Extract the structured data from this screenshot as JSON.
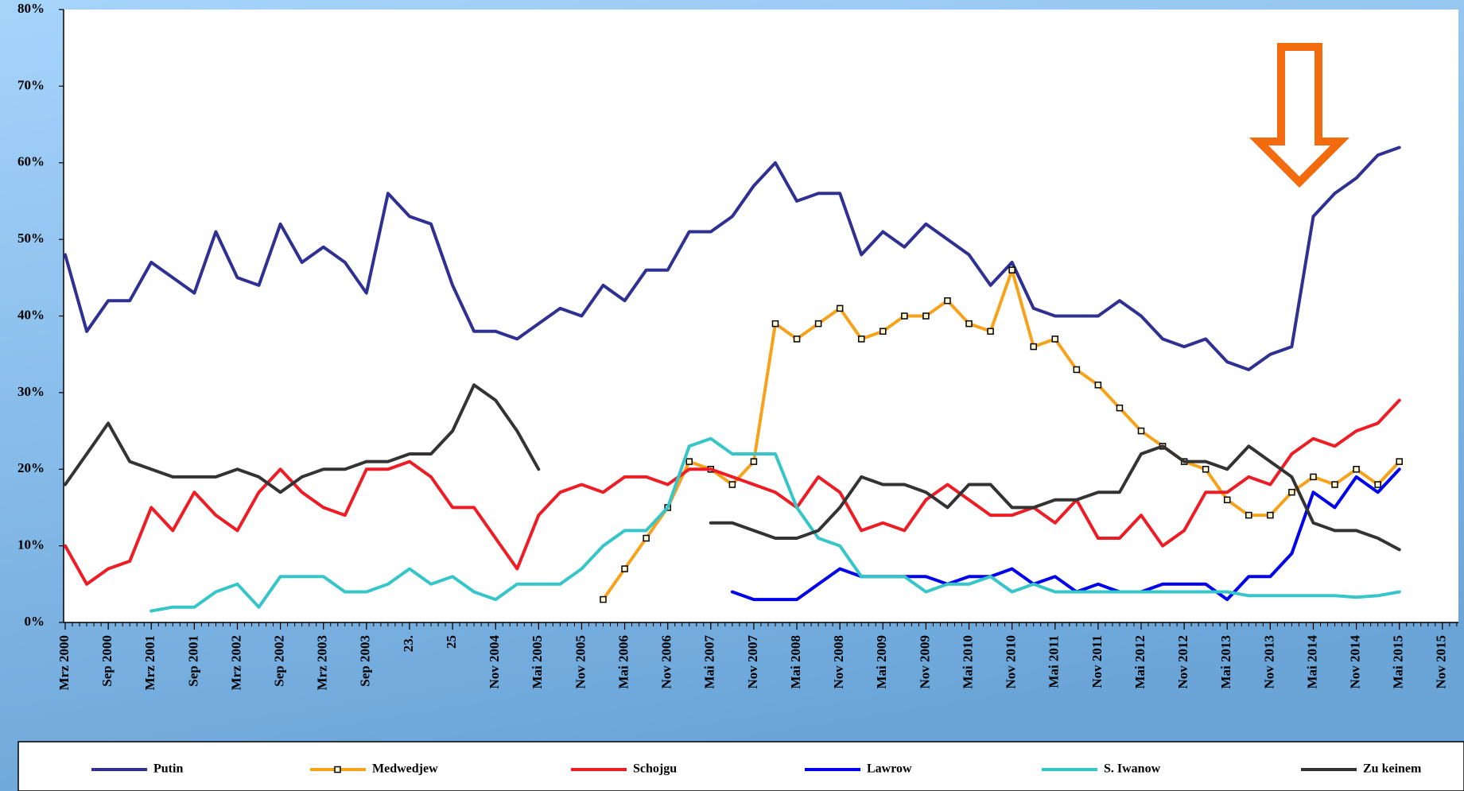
{
  "chart_data": {
    "type": "line",
    "categories": [
      "Mrz 2000",
      null,
      "Sep 2000",
      null,
      "Mrz 2001",
      null,
      "Sep 2001",
      null,
      "Mrz 2002",
      null,
      "Sep 2002",
      null,
      "Mrz 2003",
      null,
      "Sep 2003",
      null,
      "23.",
      null,
      "25",
      null,
      "Nov 2004",
      null,
      "Mai 2005",
      null,
      "Nov 2005",
      null,
      "Mai 2006",
      null,
      "Nov 2006",
      null,
      "Mai 2007",
      null,
      "Nov 2007",
      null,
      "Mai 2008",
      null,
      "Nov 2008",
      null,
      "Mai 2009",
      null,
      "Nov 2009",
      null,
      "Mai 2010",
      null,
      "Nov 2010",
      null,
      "Mai 2011",
      null,
      "Nov 2011",
      null,
      "Mai 2012",
      null,
      "Nov 2012",
      null,
      "Mai 2013",
      null,
      "Nov 2013",
      null,
      "Mai 2014",
      null,
      "Nov 2014",
      null,
      "Mai 2015",
      null,
      "Nov 2015"
    ],
    "ylim": [
      0,
      80
    ],
    "yticks": [
      {
        "value": 0,
        "label": "0%"
      },
      {
        "value": 10,
        "label": "10%"
      },
      {
        "value": 20,
        "label": "20%"
      },
      {
        "value": 30,
        "label": "30%"
      },
      {
        "value": 40,
        "label": "40%"
      },
      {
        "value": 50,
        "label": "50%"
      },
      {
        "value": 60,
        "label": "60%"
      },
      {
        "value": 70,
        "label": "70%"
      },
      {
        "value": 80,
        "label": "80%"
      }
    ],
    "legend": "bottom",
    "grid": false,
    "series": [
      {
        "name": "Putin",
        "color": "#2e3192",
        "values": [
          48,
          38,
          42,
          42,
          47,
          45,
          43,
          51,
          45,
          44,
          52,
          47,
          49,
          47,
          43,
          56,
          53,
          52,
          44,
          38,
          38,
          37,
          39,
          41,
          40,
          44,
          42,
          46,
          46,
          51,
          51,
          53,
          57,
          60,
          55,
          56,
          56,
          48,
          51,
          49,
          52,
          50,
          48,
          44,
          47,
          41,
          40,
          40,
          40,
          42,
          40,
          37,
          36,
          37,
          34,
          33,
          35,
          36,
          53,
          56,
          58,
          61,
          62,
          null,
          null
        ]
      },
      {
        "name": "Medwedjew",
        "color": "#f7a21b",
        "marker": "square",
        "values": [
          null,
          null,
          null,
          null,
          null,
          null,
          null,
          null,
          null,
          null,
          null,
          null,
          null,
          null,
          null,
          null,
          null,
          null,
          null,
          null,
          null,
          null,
          null,
          null,
          null,
          3,
          7,
          11,
          15,
          21,
          20,
          18,
          21,
          39,
          37,
          39,
          41,
          37,
          38,
          40,
          40,
          42,
          39,
          38,
          46,
          36,
          37,
          33,
          31,
          28,
          25,
          23,
          21,
          20,
          16,
          14,
          14,
          17,
          19,
          18,
          20,
          18,
          21,
          null,
          null
        ]
      },
      {
        "name": "Schojgu",
        "color": "#ee1c24",
        "values": [
          10,
          5,
          7,
          8,
          15,
          12,
          17,
          14,
          12,
          17,
          20,
          17,
          15,
          14,
          20,
          20,
          21,
          19,
          15,
          15,
          11,
          7,
          14,
          17,
          18,
          17,
          19,
          19,
          18,
          20,
          20,
          19,
          18,
          17,
          15,
          19,
          17,
          12,
          13,
          12,
          16,
          18,
          16,
          14,
          14,
          15,
          13,
          16,
          11,
          11,
          14,
          10,
          12,
          17,
          17,
          19,
          18,
          22,
          24,
          23,
          25,
          26,
          29,
          null,
          null
        ]
      },
      {
        "name": "Lawrow",
        "color": "#0000ee",
        "values": [
          null,
          null,
          null,
          null,
          null,
          null,
          null,
          null,
          null,
          null,
          null,
          null,
          null,
          null,
          null,
          null,
          null,
          null,
          null,
          null,
          null,
          null,
          null,
          null,
          null,
          null,
          null,
          null,
          null,
          null,
          null,
          4,
          3,
          3,
          3,
          5,
          7,
          6,
          6,
          6,
          6,
          5,
          6,
          6,
          7,
          5,
          6,
          4,
          5,
          4,
          4,
          5,
          5,
          5,
          3,
          6,
          6,
          9,
          17,
          15,
          19,
          17,
          20,
          null,
          null
        ]
      },
      {
        "name": "S. Iwanow",
        "color": "#36c5c9",
        "values": [
          null,
          null,
          null,
          null,
          1.5,
          2,
          2,
          4,
          5,
          2,
          6,
          6,
          6,
          4,
          4,
          5,
          7,
          5,
          6,
          4,
          3,
          5,
          5,
          5,
          7,
          10,
          12,
          12,
          15,
          23,
          24,
          22,
          22,
          22,
          15,
          11,
          10,
          6,
          6,
          6,
          4,
          5,
          5,
          6,
          4,
          5,
          4,
          4,
          4,
          4,
          4,
          4,
          4,
          4,
          4,
          3.5,
          3.5,
          3.5,
          3.5,
          3.5,
          3.3,
          3.5,
          4,
          null,
          null
        ]
      },
      {
        "name": "Zu keinem",
        "color": "#333333",
        "values": [
          18,
          22,
          26,
          21,
          20,
          19,
          19,
          19,
          20,
          19,
          17,
          19,
          20,
          20,
          21,
          21,
          22,
          22,
          25,
          31,
          29,
          25,
          20,
          null,
          null,
          null,
          null,
          null,
          null,
          null,
          13,
          13,
          12,
          11,
          11,
          12,
          15,
          19,
          18,
          18,
          17,
          15,
          18,
          18,
          15,
          15,
          16,
          16,
          17,
          17,
          22,
          23,
          21,
          21,
          20,
          23,
          21,
          19,
          13,
          12,
          12,
          11,
          9.5,
          null,
          null
        ]
      }
    ]
  }
}
